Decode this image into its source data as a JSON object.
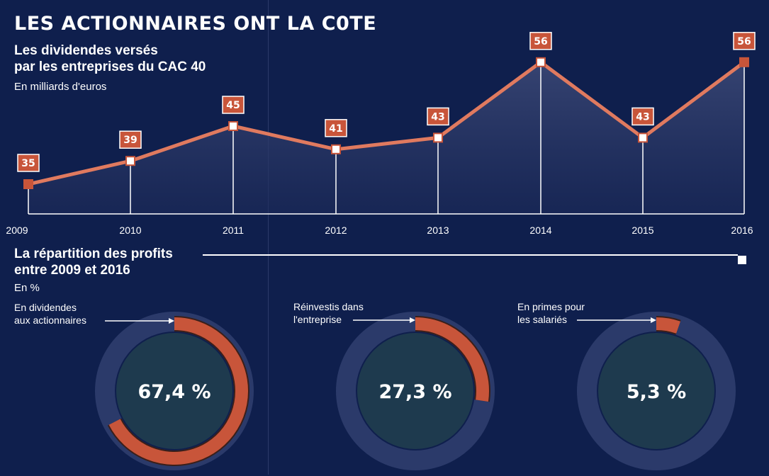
{
  "title": "LES ACTIONNAIRES ONT  LA C0TE",
  "subtitle_line1": "Les dividendes versés",
  "subtitle_line2": "par les entreprises du CAC 40",
  "unit": "En milliards d'euros",
  "colors": {
    "background": "#0f1f4d",
    "accent": "#c8553a",
    "line": "#e07a5f",
    "inner": "#1e3a4e",
    "ring_bg": "#2b3a6a"
  },
  "chart_data": [
    {
      "type": "line",
      "title": "Les dividendes versés par les entreprises du CAC 40",
      "ylabel": "En milliards d'euros",
      "x": [
        "2009",
        "2010",
        "2011",
        "2012",
        "2013",
        "2014",
        "2015",
        "2016"
      ],
      "series": [
        {
          "values": [
            35,
            39,
            45,
            41,
            43,
            56,
            43,
            56
          ]
        }
      ],
      "data_labels": [
        "35",
        "39",
        "45",
        "41",
        "43",
        "56",
        "43",
        "56"
      ],
      "grid": false
    },
    {
      "type": "pie",
      "title": "La répartition des profits entre 2009 et 2016",
      "ylabel": "En %",
      "slices": [
        {
          "label": "En dividendes aux actionnaires",
          "value": 67.4,
          "display": "67,4 %"
        },
        {
          "label": "Réinvestis dans l'entreprise",
          "value": 27.3,
          "display": "27,3 %"
        },
        {
          "label": "En primes pour les salariés",
          "value": 5.3,
          "display": "5,3 %"
        }
      ]
    }
  ],
  "section2": {
    "title_line1": "La répartition des profits",
    "title_line2": "entre 2009 et 2016",
    "unit": "En %"
  },
  "donuts": [
    {
      "label_line1": "En dividendes",
      "label_line2": "aux actionnaires",
      "value": 67.4,
      "display": "67,4 %"
    },
    {
      "label_line1": "Réinvestis dans",
      "label_line2": "l'entreprise",
      "value": 27.3,
      "display": "27,3 %"
    },
    {
      "label_line1": "En primes pour",
      "label_line2": "les salariés",
      "value": 5.3,
      "display": "5,3 %"
    }
  ]
}
